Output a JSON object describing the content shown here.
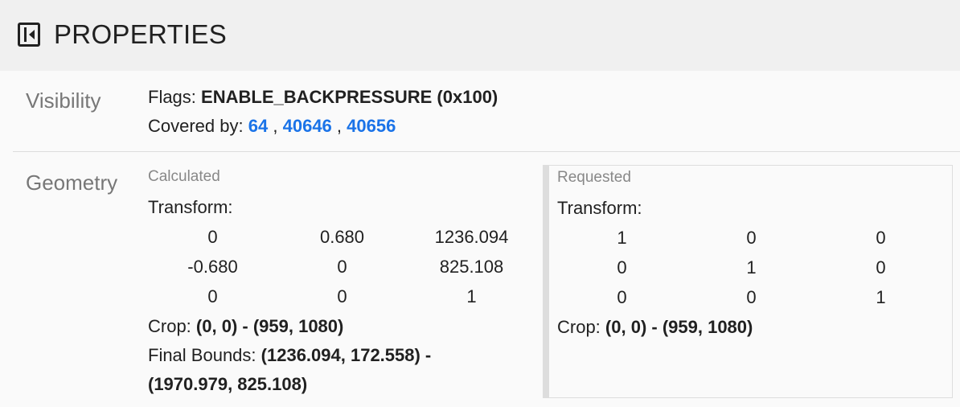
{
  "header": {
    "title": "PROPERTIES",
    "icon": "toggle-sidebar-icon"
  },
  "visibility": {
    "label": "Visibility",
    "flags_label": "Flags:",
    "flags_value": "ENABLE_BACKPRESSURE (0x100)",
    "covered_label": "Covered by:",
    "covered_by": [
      "64",
      "40646",
      "40656"
    ],
    "separator": ","
  },
  "geometry": {
    "label": "Geometry",
    "calculated": {
      "title": "Calculated",
      "transform_label": "Transform:",
      "matrix": [
        [
          "0",
          "0.680",
          "1236.094"
        ],
        [
          "-0.680",
          "0",
          "825.108"
        ],
        [
          "0",
          "0",
          "1"
        ]
      ],
      "crop_label": "Crop:",
      "crop_value": "(0, 0) - (959, 1080)",
      "final_bounds_label": "Final Bounds:",
      "final_bounds_line1": "(1236.094, 172.558) -",
      "final_bounds_line2": "(1970.979, 825.108)"
    },
    "requested": {
      "title": "Requested",
      "transform_label": "Transform:",
      "matrix": [
        [
          "1",
          "0",
          "0"
        ],
        [
          "0",
          "1",
          "0"
        ],
        [
          "0",
          "0",
          "1"
        ]
      ],
      "crop_label": "Crop:",
      "crop_value": "(0, 0) - (959, 1080)"
    }
  }
}
